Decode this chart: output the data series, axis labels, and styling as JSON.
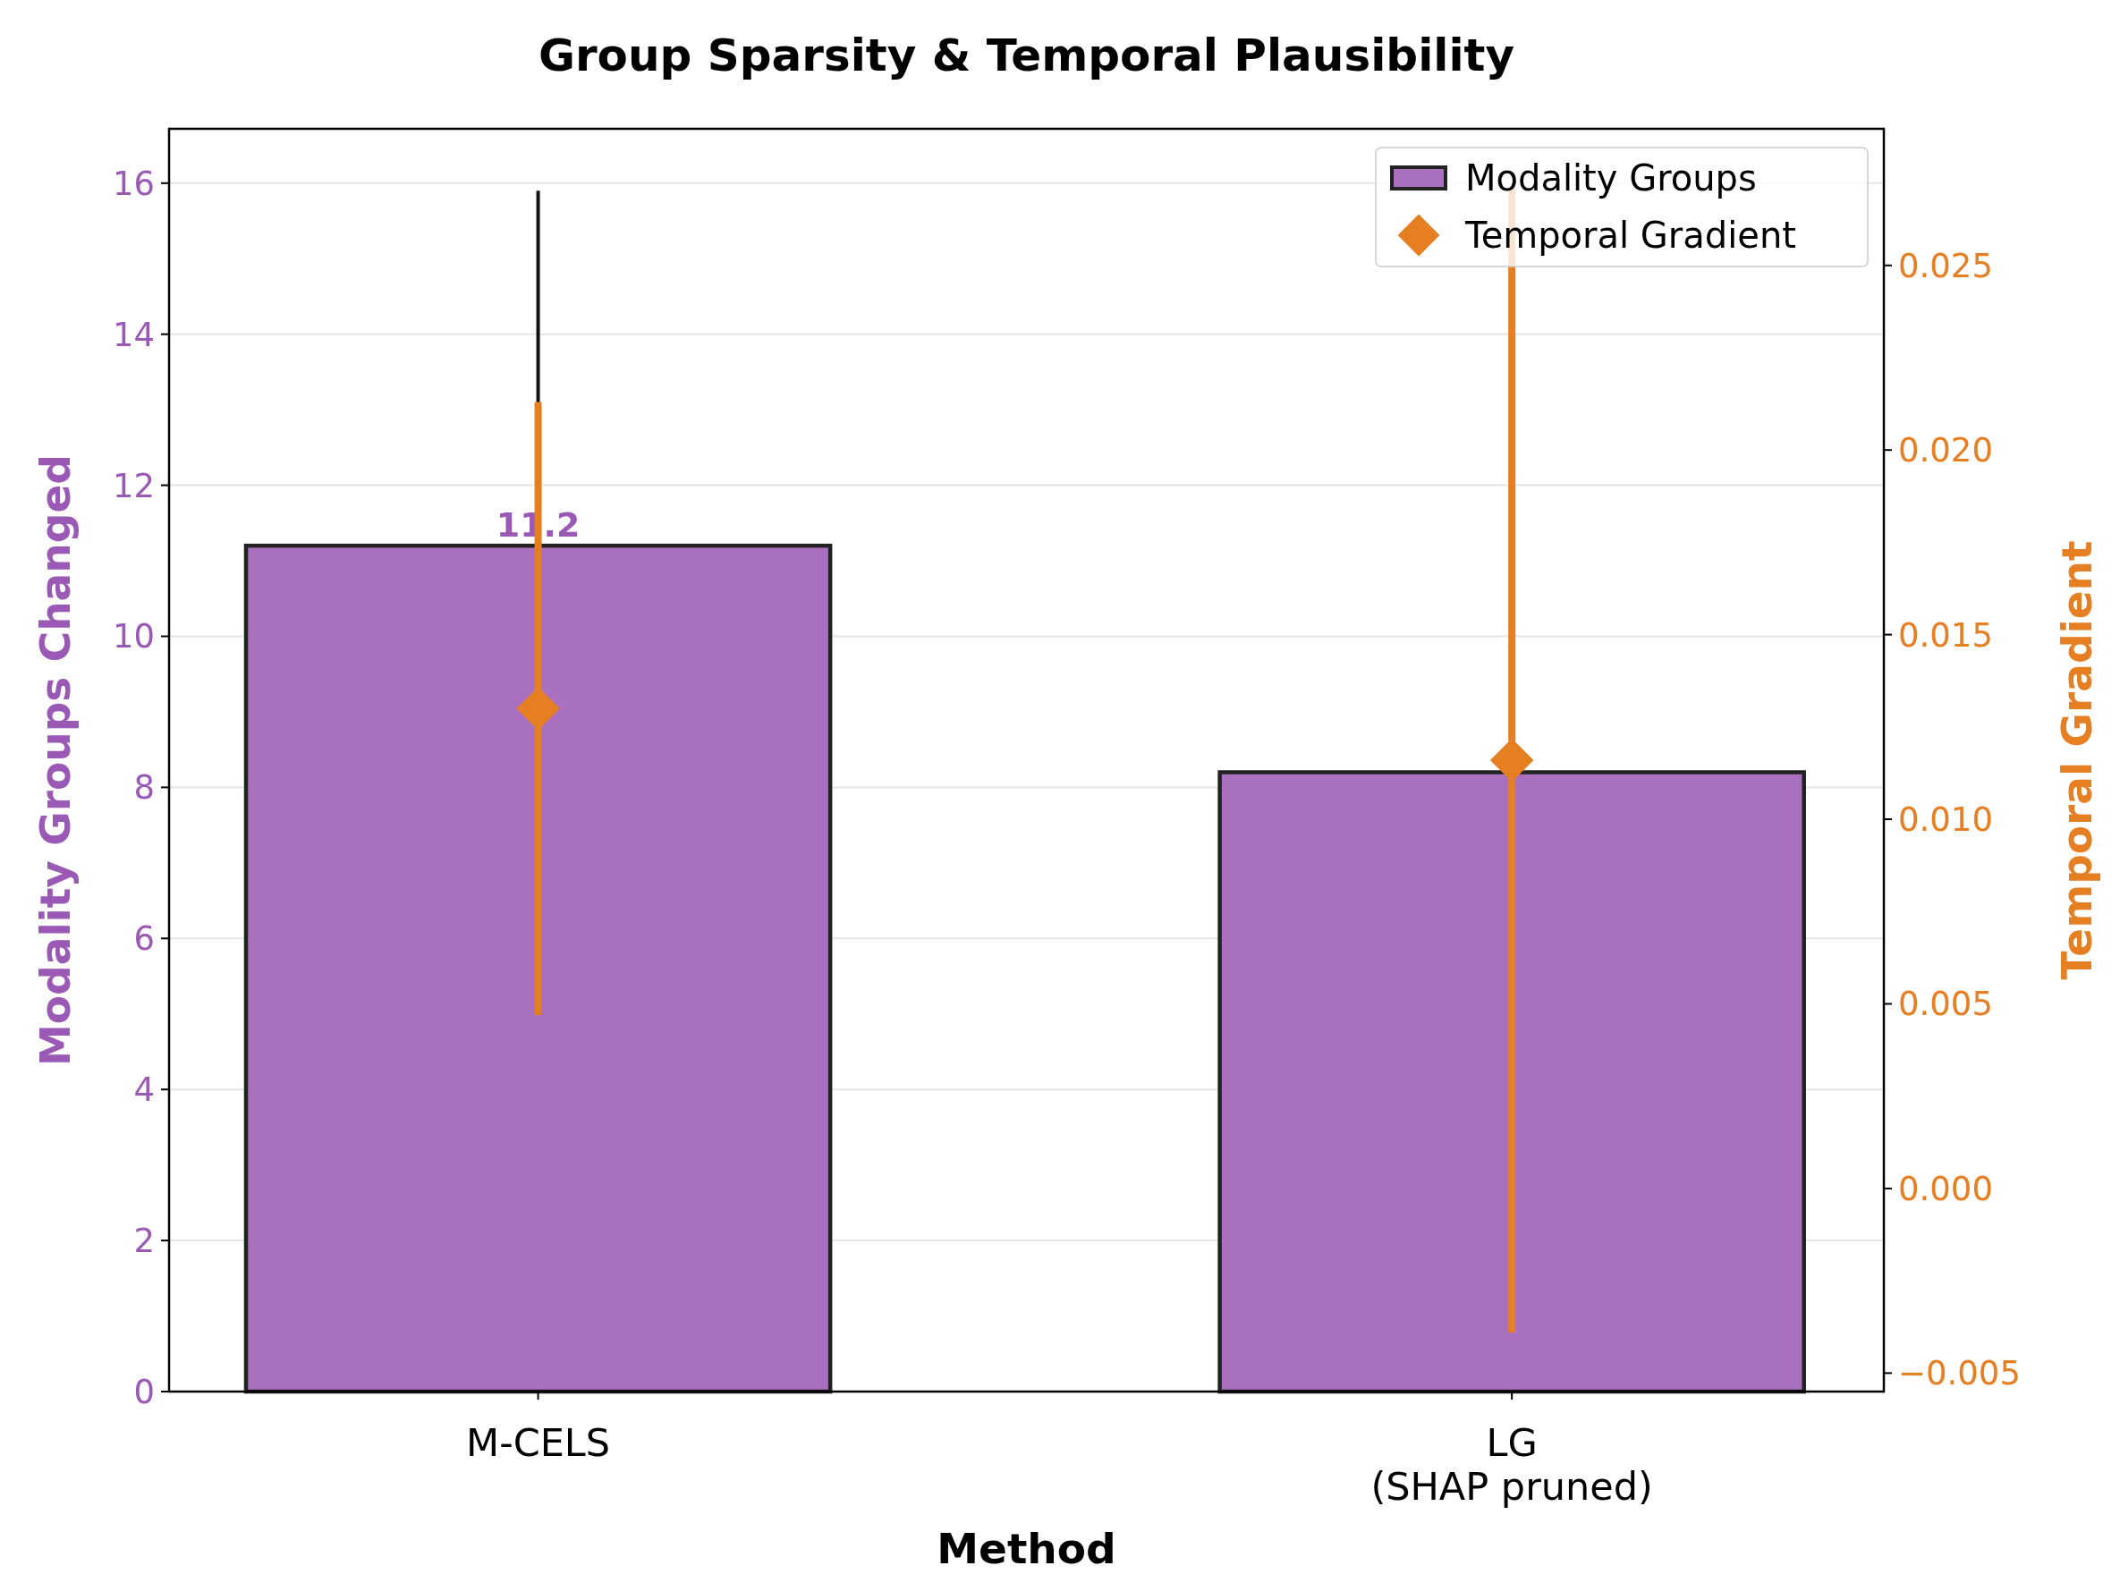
{
  "chart_data": {
    "type": "bar",
    "title": "Group Sparsity & Temporal Plausibility",
    "xlabel": "Method",
    "ylabel": "Modality Groups Changed",
    "y2label": "Temporal Gradient",
    "categories": [
      "M-CELS",
      "LG\n(SHAP pruned)"
    ],
    "series": [
      {
        "name": "Modality Groups",
        "color": "#a970bf",
        "values": [
          11.2,
          8.2
        ],
        "value_labels": [
          "11.2",
          null
        ],
        "errors": [
          4.7,
          null
        ]
      },
      {
        "name": "Temporal Gradient",
        "type": "scatter",
        "axis": "y2",
        "color": "#e67e22",
        "values": [
          0.013,
          0.0116
        ],
        "errors": [
          0.0083,
          0.0155
        ]
      }
    ],
    "ylim": [
      0,
      16.72
    ],
    "yticks": [
      0,
      2,
      4,
      6,
      8,
      10,
      12,
      14,
      16
    ],
    "y2lim": [
      -0.0055,
      0.0287
    ],
    "y2ticks": [
      {
        "value": -0.005,
        "label": "−0.005"
      },
      {
        "value": 0,
        "label": "0.000"
      },
      {
        "value": 0.005,
        "label": "0.005"
      },
      {
        "value": 0.01,
        "label": "0.010"
      },
      {
        "value": 0.015,
        "label": "0.015"
      },
      {
        "value": 0.02,
        "label": "0.020"
      },
      {
        "value": 0.025,
        "label": "0.025"
      }
    ],
    "grid": "y",
    "legend": "top right",
    "marker": "diamond"
  }
}
